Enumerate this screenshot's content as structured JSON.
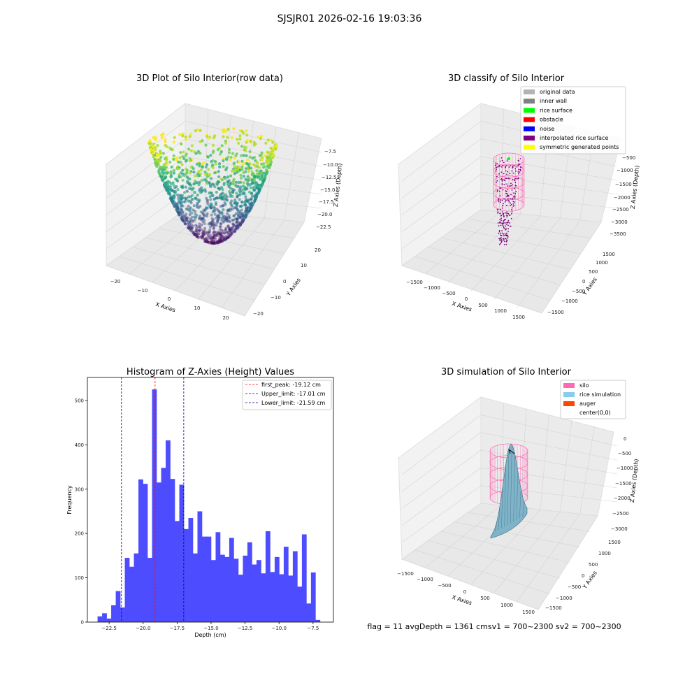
{
  "suptitle": "SJSJR01 2026-02-16 19:03:36",
  "footer": "flag = 11   avgDepth = 1361 cmsv1 = 700~2300  sv2 = 700~2300",
  "colors": {
    "original_data": "#b3b3b3",
    "inner_wall": "#808080",
    "rice_surface": "#00ff00",
    "obstacle": "#ff0000",
    "noise": "#0000ff",
    "interpolated_rice_surface": "#800080",
    "symmetric_generated_points": "#ffff00",
    "silo": "#ff69b4",
    "rice_simulation": "#87ceeb",
    "auger": "#ff4500",
    "hist_bar": "#4d4dff",
    "first_peak": "#ff0000",
    "limits": "#00008b"
  },
  "panel_raw": {
    "title": "3D Plot of Silo Interior(row data)",
    "xlabel": "X Axies",
    "ylabel": "Y Axies",
    "zlabel": "Z Axies (Depth)",
    "xticks": [
      "−20",
      "−10",
      "0",
      "10",
      "20"
    ],
    "yticks": [
      "−20",
      "−10",
      "0",
      "10",
      "20"
    ],
    "zticks": [
      "−7.5",
      "−10.0",
      "−12.5",
      "−15.0",
      "−17.5",
      "−20.0",
      "−22.5"
    ],
    "colormap": "viridis"
  },
  "panel_classify": {
    "title": "3D classify of Silo Interior",
    "xlabel": "X Axies",
    "ylabel": "Y Axies",
    "zlabel": "Z Axies (Depth)",
    "xticks": [
      "−1500",
      "−1000",
      "−500",
      "0",
      "500",
      "1000",
      "1500"
    ],
    "yticks": [
      "−1500",
      "−1000",
      "−500",
      "0",
      "500",
      "1000",
      "1500"
    ],
    "zticks": [
      "−500",
      "−1000",
      "−1500",
      "−2000",
      "−2500",
      "−3000",
      "−3500"
    ],
    "legend": [
      {
        "label": "original data",
        "color_key": "original_data"
      },
      {
        "label": "inner wall",
        "color_key": "inner_wall"
      },
      {
        "label": "rice surface",
        "color_key": "rice_surface"
      },
      {
        "label": "obstacle",
        "color_key": "obstacle"
      },
      {
        "label": "noise",
        "color_key": "noise"
      },
      {
        "label": "interpolated rice surface",
        "color_key": "interpolated_rice_surface"
      },
      {
        "label": "symmetric generated points",
        "color_key": "symmetric_generated_points"
      }
    ]
  },
  "panel_sim": {
    "title": "3D simulation of Silo Interior",
    "xlabel": "X Axies",
    "ylabel": "Y Axies",
    "zlabel": "Z Axies (Depth)",
    "xticks": [
      "−1500",
      "−1000",
      "−500",
      "0",
      "500",
      "1000",
      "1500"
    ],
    "yticks": [
      "−1500",
      "−1000",
      "−500",
      "0",
      "500",
      "1000",
      "1500"
    ],
    "zticks": [
      "0",
      "−500",
      "−1000",
      "−1500",
      "−2000",
      "−2500",
      "−3000"
    ],
    "legend": [
      {
        "label": "silo",
        "color_key": "silo"
      },
      {
        "label": "rice simulation",
        "color_key": "rice_simulation"
      },
      {
        "label": "auger",
        "color_key": "auger"
      },
      {
        "label": "center(0,0)",
        "color_key": ""
      }
    ]
  },
  "chart_data": {
    "type": "bar",
    "title": "Histogram of Z-Axies (Height) Values",
    "xlabel": "Depth (cm)",
    "ylabel": "Frequency",
    "xlim": [
      -24.1,
      -6.0
    ],
    "ylim": [
      0,
      552
    ],
    "xticks": [
      {
        "value": -22.5,
        "label": "−22.5"
      },
      {
        "value": -20.0,
        "label": "−20.0"
      },
      {
        "value": -17.5,
        "label": "−17.5"
      },
      {
        "value": -15.0,
        "label": "−15.0"
      },
      {
        "value": -12.5,
        "label": "−12.5"
      },
      {
        "value": -10.0,
        "label": "−10.0"
      },
      {
        "value": -7.5,
        "label": "−7.5"
      }
    ],
    "yticks": [
      {
        "value": 0,
        "label": "0"
      },
      {
        "value": 100,
        "label": "100"
      },
      {
        "value": 200,
        "label": "200"
      },
      {
        "value": 300,
        "label": "300"
      },
      {
        "value": 400,
        "label": "400"
      },
      {
        "value": 500,
        "label": "500"
      }
    ],
    "bin_start": -23.35,
    "bin_width": 0.334,
    "values": [
      13,
      20,
      8,
      38,
      70,
      33,
      145,
      125,
      155,
      322,
      312,
      145,
      525,
      315,
      348,
      410,
      323,
      228,
      310,
      210,
      235,
      155,
      250,
      193,
      193,
      140,
      203,
      152,
      147,
      190,
      143,
      107,
      150,
      180,
      130,
      140,
      110,
      205,
      113,
      147,
      108,
      170,
      105,
      160,
      80,
      198,
      42,
      112,
      5
    ],
    "vlines": [
      {
        "name": "first_peak: -19.12 cm",
        "value": -19.12,
        "color_key": "first_peak"
      },
      {
        "name": "Upper_limit: -17.01 cm",
        "value": -17.01,
        "color_key": "limits"
      },
      {
        "name": "Lower_limit: -21.59 cm",
        "value": -21.59,
        "color_key": "limits"
      }
    ],
    "legend_position": "upper right",
    "grid": false
  }
}
